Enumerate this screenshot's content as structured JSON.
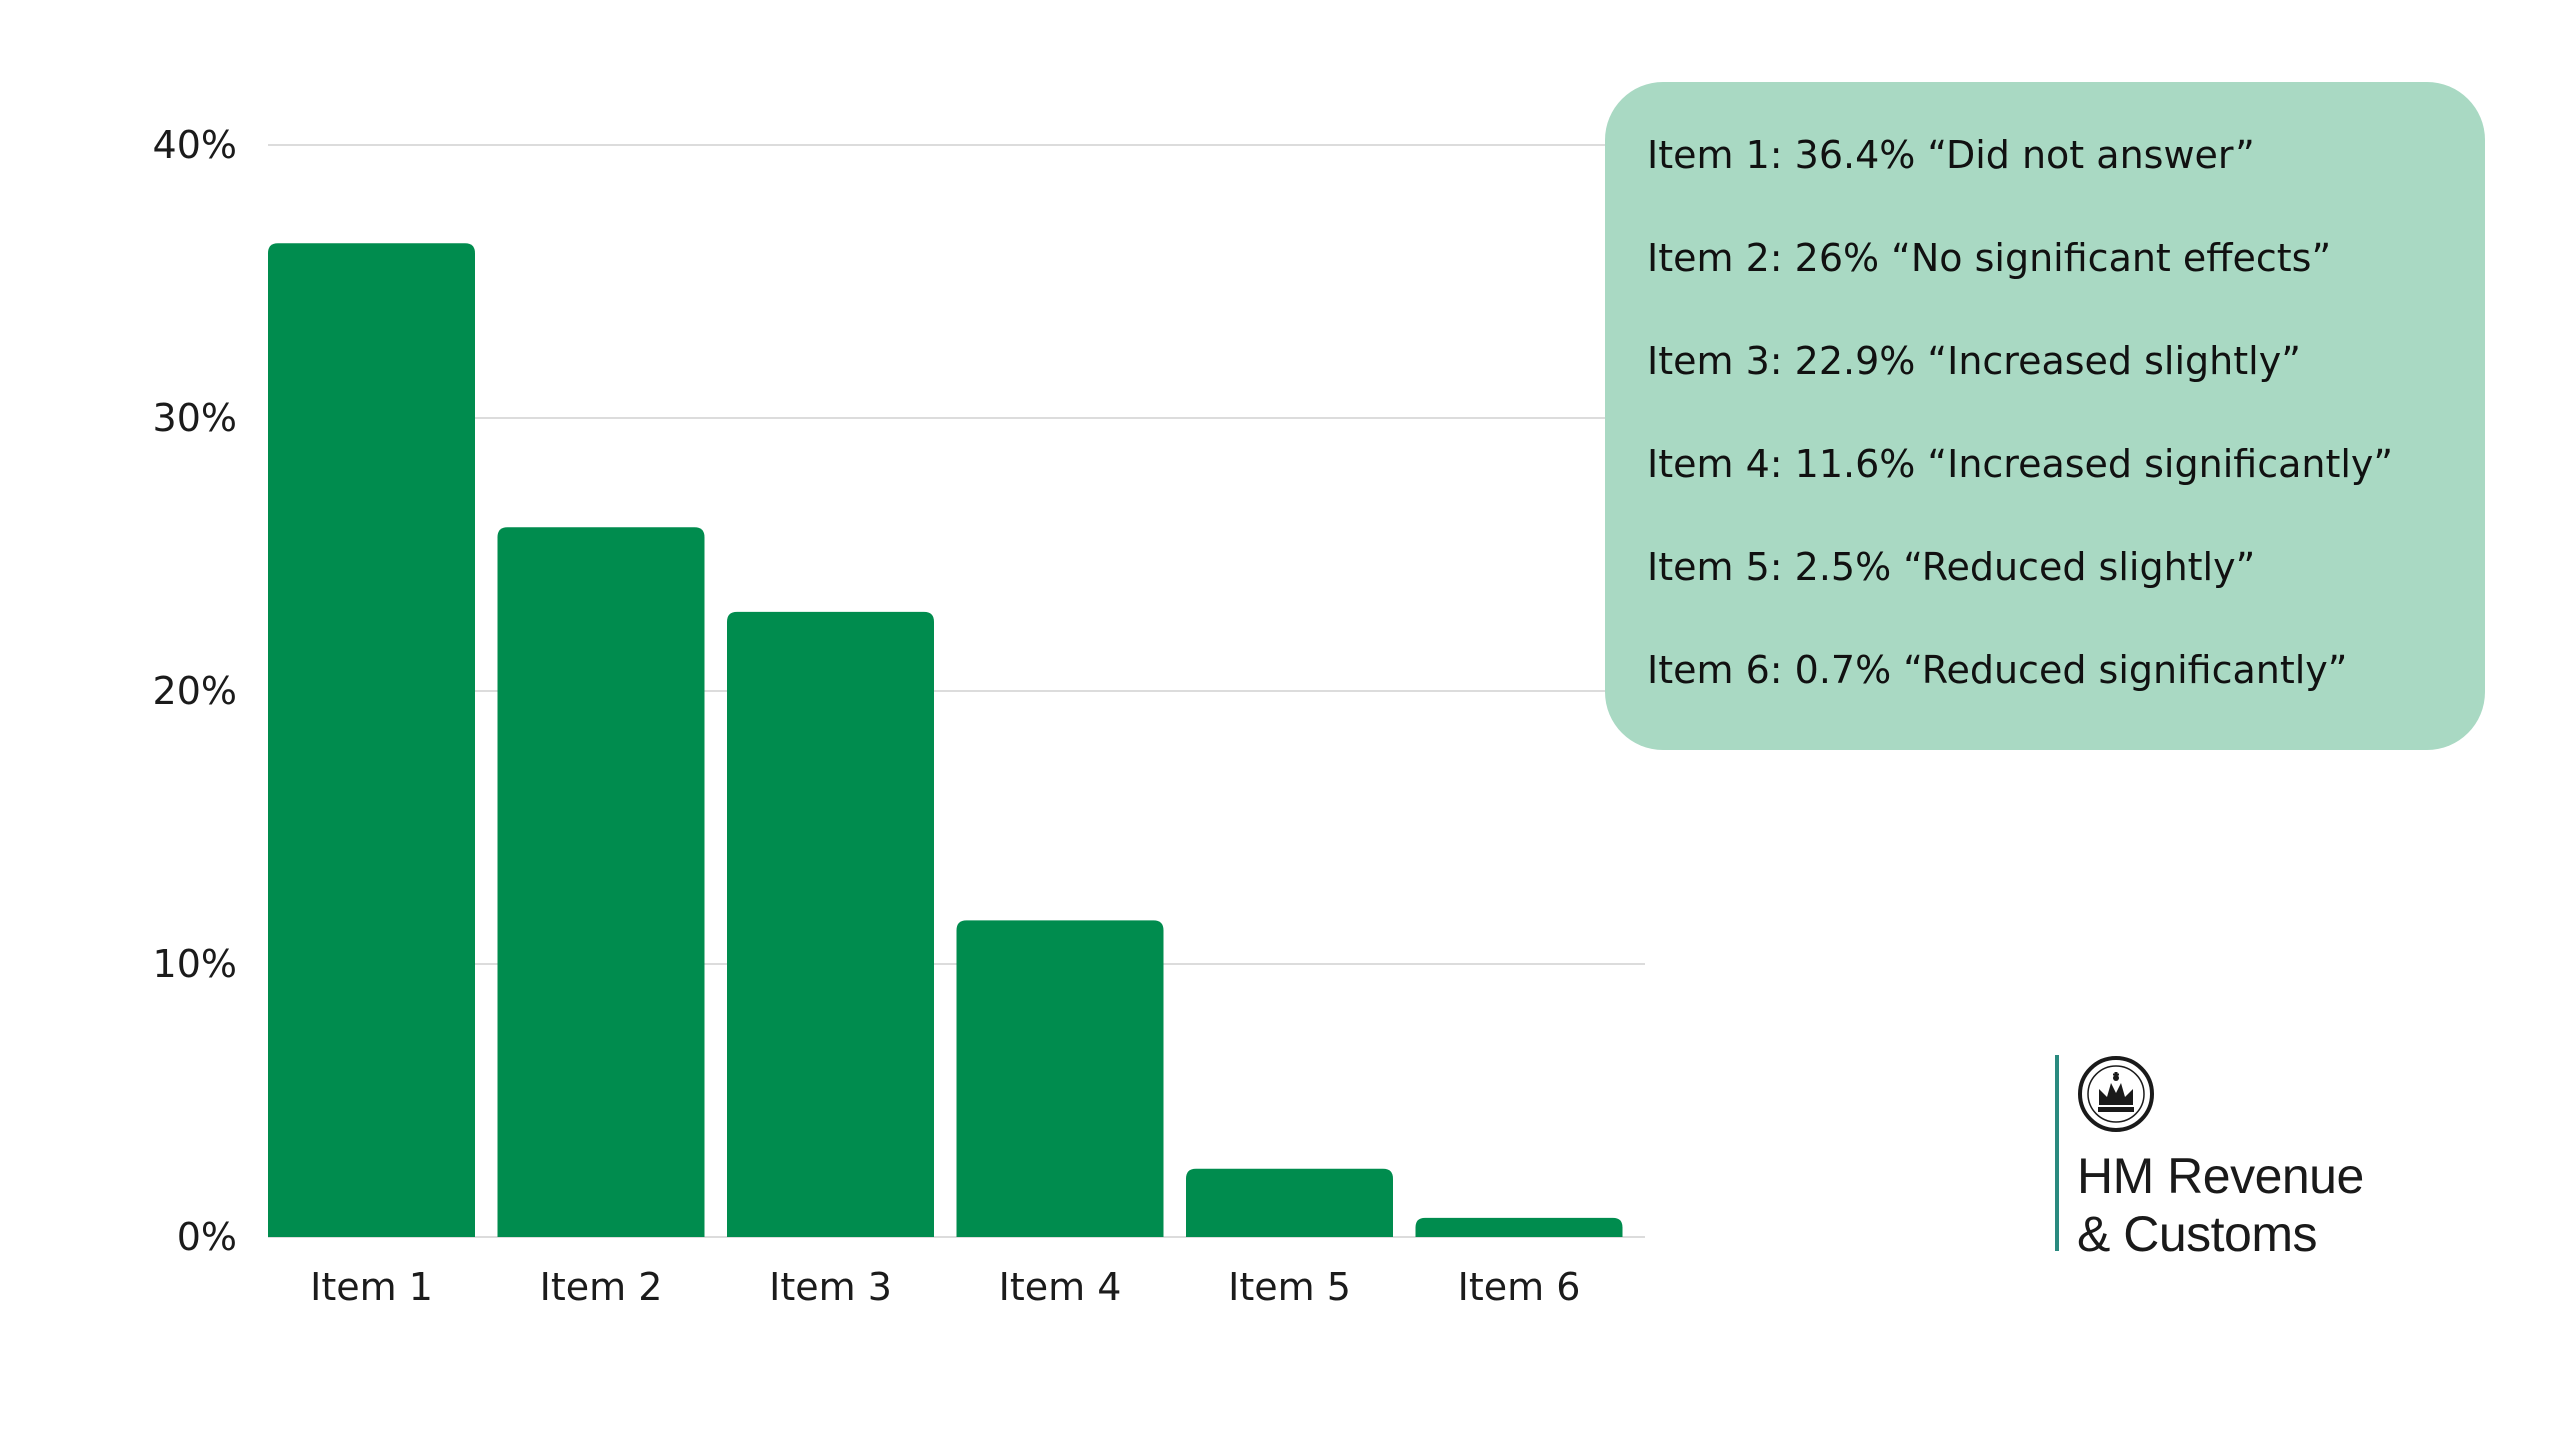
{
  "chart_data": {
    "type": "bar",
    "categories": [
      "Item 1",
      "Item 2",
      "Item 3",
      "Item 4",
      "Item 5",
      "Item 6"
    ],
    "values": [
      36.4,
      26,
      22.9,
      11.6,
      2.5,
      0.7
    ],
    "ylim": [
      0,
      40
    ],
    "yticks": [
      0,
      10,
      20,
      30,
      40
    ],
    "ytick_labels": [
      "0%",
      "10%",
      "20%",
      "30%",
      "40%"
    ],
    "grid": true,
    "bar_color": "#008c4e",
    "title": "",
    "xlabel": "",
    "ylabel": ""
  },
  "legend": {
    "background_color": "#a9d9c3",
    "items": [
      "Item 1: 36.4% “Did not answer”",
      "Item 2: 26% “No significant effects”",
      "Item 3: 22.9% “Increased slightly”",
      "Item 4: 11.6% “Increased significantly”",
      "Item 5: 2.5% “Reduced slightly”",
      "Item 6: 0.7% “Reduced significantly”"
    ]
  },
  "logo": {
    "line1": "HM Revenue",
    "line2": "& Customs",
    "icon": "crown-crest-icon",
    "accent_color": "#2a8a7f"
  }
}
